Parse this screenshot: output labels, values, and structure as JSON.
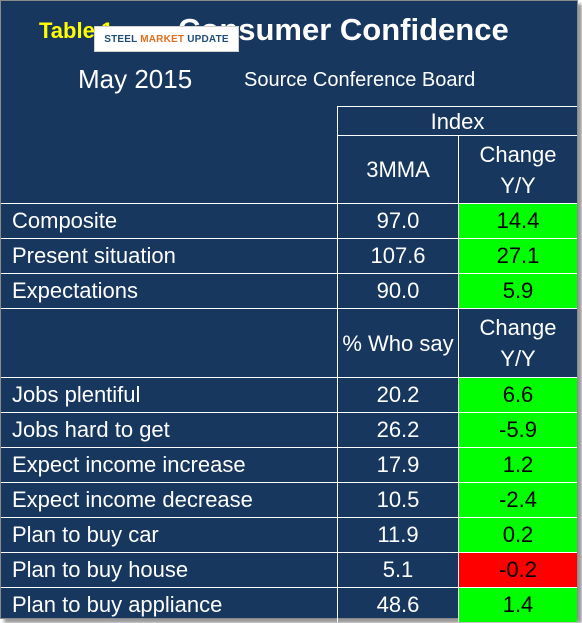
{
  "header": {
    "table_label": "Table 1",
    "title": "Consumer Confidence",
    "date": "May 2015",
    "source": "Source Conference Board"
  },
  "logo": {
    "text_a": "STEEL",
    "text_b": "MARKET",
    "text_c": "UPDATE"
  },
  "columns": {
    "index_group": "Index",
    "value_1": "3MMA",
    "change_1": "Change Y/Y",
    "value_2": "% Who say",
    "change_2": "Change Y/Y"
  },
  "section1": [
    {
      "label": "Composite",
      "value": "97.0",
      "change": "14.4",
      "status": "green"
    },
    {
      "label": "Present situation",
      "value": "107.6",
      "change": "27.1",
      "status": "green"
    },
    {
      "label": "Expectations",
      "value": "90.0",
      "change": "5.9",
      "status": "green"
    }
  ],
  "section2": [
    {
      "label": "Jobs plentiful",
      "value": "20.2",
      "change": "6.6",
      "status": "green"
    },
    {
      "label": "Jobs hard to get",
      "value": "26.2",
      "change": "-5.9",
      "status": "green"
    },
    {
      "label": "Expect income increase",
      "value": "17.9",
      "change": "1.2",
      "status": "green"
    },
    {
      "label": "Expect income decrease",
      "value": "10.5",
      "change": "-2.4",
      "status": "green"
    },
    {
      "label": "Plan to buy car",
      "value": "11.9",
      "change": "0.2",
      "status": "green"
    },
    {
      "label": "Plan to buy house",
      "value": "5.1",
      "change": "-0.2",
      "status": "red"
    },
    {
      "label": "Plan to buy appliance",
      "value": "48.6",
      "change": "1.4",
      "status": "green"
    }
  ],
  "colors": {
    "background": "#17375e",
    "positive": "#00ff00",
    "negative": "#ff0000",
    "label_accent": "#ffff00"
  }
}
